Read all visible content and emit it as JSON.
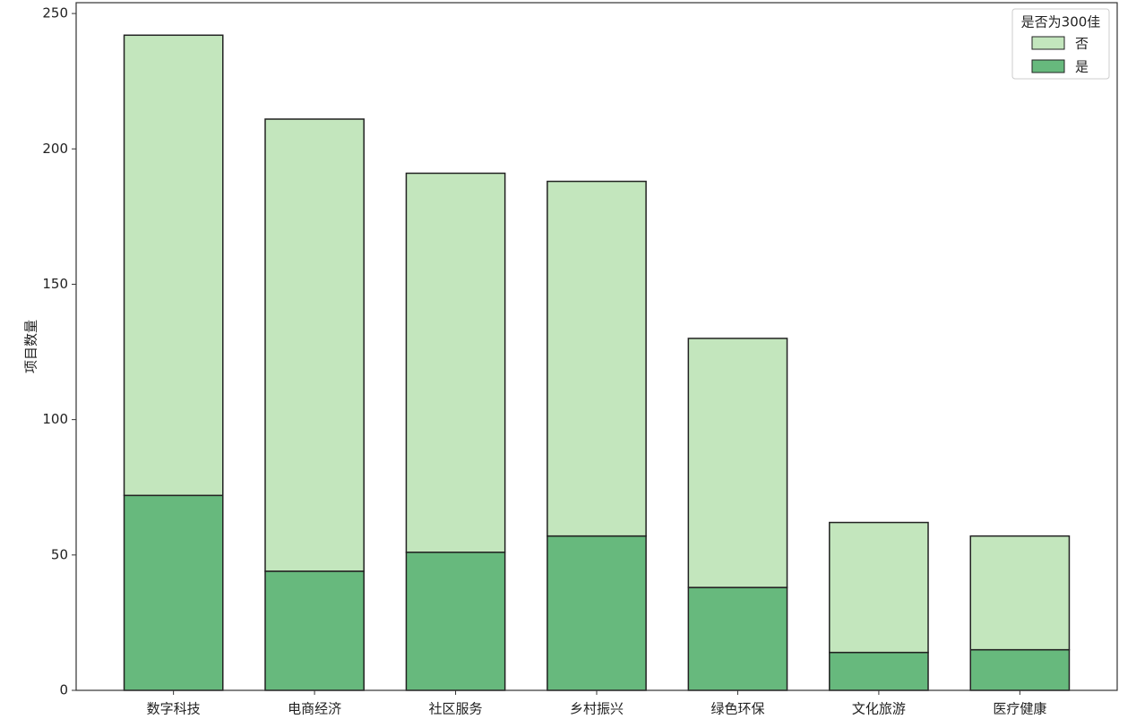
{
  "chart_data": {
    "type": "stacked_bar",
    "ylabel": "项目数量",
    "categories": [
      "数字科技",
      "电商经济",
      "社区服务",
      "乡村振兴",
      "绿色环保",
      "文化旅游",
      "医疗健康"
    ],
    "series": [
      {
        "name": "是",
        "color": "#67b97d",
        "values": [
          72,
          44,
          51,
          57,
          38,
          14,
          15
        ]
      },
      {
        "name": "否",
        "color": "#c3e6bd",
        "values": [
          170,
          167,
          140,
          131,
          92,
          48,
          42
        ]
      }
    ],
    "legend_title": "是否为300佳",
    "legend": "upper right",
    "ylim": [
      0,
      254
    ],
    "yticks": [
      0,
      50,
      100,
      150,
      200,
      250
    ]
  }
}
